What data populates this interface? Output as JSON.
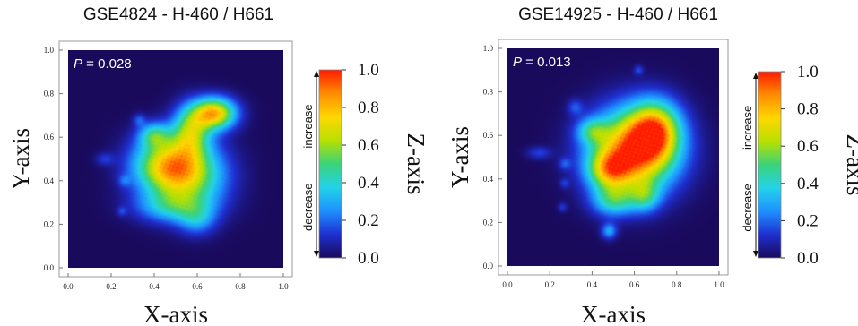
{
  "colors": {
    "background": "#1a0a5c",
    "colormap": [
      "#1a0a5c",
      "#1f2fd0",
      "#1e90ff",
      "#22d3e8",
      "#3ad37a",
      "#b8e000",
      "#ffd700",
      "#ff8c00",
      "#ff1a00"
    ]
  },
  "chart_data": [
    {
      "type": "heatmap",
      "title": "GSE4824 - H-460 / H661",
      "xlabel": "X-axis",
      "ylabel": "Y-axis",
      "zlabel": "Z-axis",
      "xlim": [
        0.0,
        1.0
      ],
      "ylim": [
        0.0,
        1.0
      ],
      "zlim": [
        0.0,
        1.0
      ],
      "xticks": [
        "0.0",
        "0.2",
        "0.4",
        "0.6",
        "0.8",
        "1.0"
      ],
      "yticks": [
        "0.0",
        "0.2",
        "0.4",
        "0.6",
        "0.8",
        "1.0"
      ],
      "colorbar_ticks": [
        "0.0",
        "0.2",
        "0.4",
        "0.6",
        "0.8",
        "1.0"
      ],
      "colorbar_side_labels": {
        "decrease": "decrease",
        "increase": "increase"
      },
      "annotation": {
        "p_label": "P",
        "p_value": " = 0.028"
      },
      "blobs": [
        {
          "x": 0.45,
          "y": 0.47,
          "sx": 0.11,
          "sy": 0.09,
          "z": 0.58
        },
        {
          "x": 0.57,
          "y": 0.42,
          "sx": 0.12,
          "sy": 0.11,
          "z": 0.5
        },
        {
          "x": 0.68,
          "y": 0.71,
          "sx": 0.07,
          "sy": 0.05,
          "z": 0.78
        },
        {
          "x": 0.57,
          "y": 0.63,
          "sx": 0.06,
          "sy": 0.08,
          "z": 0.5
        },
        {
          "x": 0.4,
          "y": 0.61,
          "sx": 0.05,
          "sy": 0.04,
          "z": 0.35
        },
        {
          "x": 0.48,
          "y": 0.28,
          "sx": 0.12,
          "sy": 0.05,
          "z": 0.28
        },
        {
          "x": 0.6,
          "y": 0.22,
          "sx": 0.06,
          "sy": 0.05,
          "z": 0.22
        },
        {
          "x": 0.17,
          "y": 0.5,
          "sx": 0.03,
          "sy": 0.02,
          "z": 0.12
        },
        {
          "x": 0.26,
          "y": 0.4,
          "sx": 0.02,
          "sy": 0.02,
          "z": 0.12
        },
        {
          "x": 0.25,
          "y": 0.26,
          "sx": 0.015,
          "sy": 0.015,
          "z": 0.12
        },
        {
          "x": 0.33,
          "y": 0.68,
          "sx": 0.02,
          "sy": 0.02,
          "z": 0.15
        }
      ]
    },
    {
      "type": "heatmap",
      "title": "GSE14925 - H-460 / H661",
      "xlabel": "X-axis",
      "ylabel": "Y-axis",
      "zlabel": "Z-axis",
      "xlim": [
        0.0,
        1.0
      ],
      "ylim": [
        0.0,
        1.0
      ],
      "zlim": [
        0.0,
        1.0
      ],
      "xticks": [
        "0.0",
        "0.2",
        "0.4",
        "0.6",
        "0.8",
        "1.0"
      ],
      "yticks": [
        "0.0",
        "0.2",
        "0.4",
        "0.6",
        "0.8",
        "1.0"
      ],
      "colorbar_ticks": [
        "0.0",
        "0.2",
        "0.4",
        "0.6",
        "0.8",
        "1.0"
      ],
      "colorbar_side_labels": {
        "decrease": "decrease",
        "increase": "increase"
      },
      "annotation": {
        "p_label": "P",
        "p_value": " = 0.013"
      },
      "blobs": [
        {
          "x": 0.6,
          "y": 0.53,
          "sx": 0.14,
          "sy": 0.13,
          "z": 0.95
        },
        {
          "x": 0.7,
          "y": 0.63,
          "sx": 0.08,
          "sy": 0.09,
          "z": 0.55
        },
        {
          "x": 0.48,
          "y": 0.44,
          "sx": 0.07,
          "sy": 0.06,
          "z": 0.45
        },
        {
          "x": 0.5,
          "y": 0.3,
          "sx": 0.07,
          "sy": 0.05,
          "z": 0.35
        },
        {
          "x": 0.4,
          "y": 0.62,
          "sx": 0.05,
          "sy": 0.04,
          "z": 0.3
        },
        {
          "x": 0.65,
          "y": 0.32,
          "sx": 0.05,
          "sy": 0.05,
          "z": 0.3
        },
        {
          "x": 0.48,
          "y": 0.16,
          "sx": 0.025,
          "sy": 0.025,
          "z": 0.28
        },
        {
          "x": 0.15,
          "y": 0.52,
          "sx": 0.04,
          "sy": 0.02,
          "z": 0.14
        },
        {
          "x": 0.27,
          "y": 0.47,
          "sx": 0.02,
          "sy": 0.02,
          "z": 0.14
        },
        {
          "x": 0.26,
          "y": 0.27,
          "sx": 0.015,
          "sy": 0.015,
          "z": 0.13
        },
        {
          "x": 0.62,
          "y": 0.9,
          "sx": 0.015,
          "sy": 0.015,
          "z": 0.15
        },
        {
          "x": 0.32,
          "y": 0.73,
          "sx": 0.025,
          "sy": 0.025,
          "z": 0.15
        },
        {
          "x": 0.27,
          "y": 0.38,
          "sx": 0.015,
          "sy": 0.015,
          "z": 0.12
        }
      ]
    }
  ]
}
